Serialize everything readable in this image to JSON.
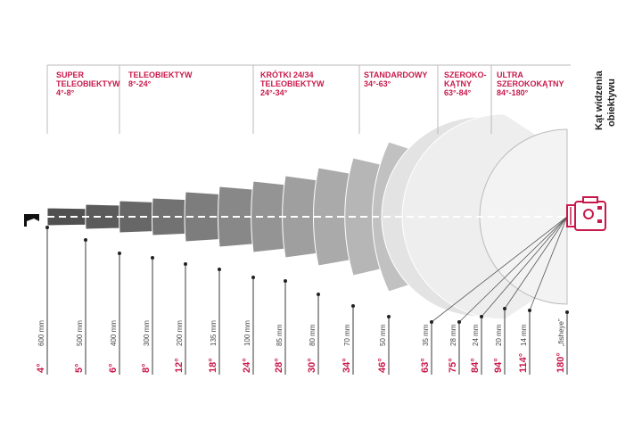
{
  "title_lines": [
    "Kąt widzenia",
    "obiektywu"
  ],
  "categories": [
    {
      "name": "SUPER\nTELEOBIEKTYW",
      "range": "4°-8°"
    },
    {
      "name": "TELEOBIEKTYW",
      "range": "8°-24°"
    },
    {
      "name": "KRÓTKI 24/34\nTELEOBIEKTYW",
      "range": "24°-34°"
    },
    {
      "name": "STANDARDOWY",
      "range": "34°-63°"
    },
    {
      "name": "SZEROKO-\nKĄTNY",
      "range": "63°-84°"
    },
    {
      "name": "ULTRA\nSZEROKOKĄTNY",
      "range": "84°-180°"
    }
  ],
  "lenses": [
    {
      "angle": "4°",
      "focal": "600 mm"
    },
    {
      "angle": "5°",
      "focal": "500 mm"
    },
    {
      "angle": "6°",
      "focal": "400 mm"
    },
    {
      "angle": "8°",
      "focal": "300 mm"
    },
    {
      "angle": "12°",
      "focal": "200 mm"
    },
    {
      "angle": "18°",
      "focal": "135 mm"
    },
    {
      "angle": "24°",
      "focal": "100 mm"
    },
    {
      "angle": "28°",
      "focal": "85 mm"
    },
    {
      "angle": "30°",
      "focal": "80 mm"
    },
    {
      "angle": "34°",
      "focal": "70 mm"
    },
    {
      "angle": "46°",
      "focal": "50 mm"
    },
    {
      "angle": "63°",
      "focal": "35 mm"
    },
    {
      "angle": "75°",
      "focal": "28 mm"
    },
    {
      "angle": "84°",
      "focal": "24 mm"
    },
    {
      "angle": "94°",
      "focal": "20 mm"
    },
    {
      "angle": "114°",
      "focal": "14 mm"
    },
    {
      "angle": "180°",
      "focal": "„fisheye”"
    }
  ],
  "colors": {
    "accent": "#c8194b",
    "line": "#3a3a3a",
    "dark": "#505050",
    "light": "#ececec"
  },
  "icons": {
    "camera": "camera-icon",
    "subject": "subject-flag-icon"
  }
}
